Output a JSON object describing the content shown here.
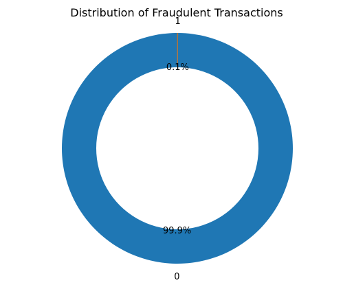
{
  "chart_data": {
    "type": "pie",
    "donut": true,
    "title": "Distribution of Fraudulent Transactions",
    "categories": [
      "0",
      "1"
    ],
    "values": [
      99.9,
      0.1
    ],
    "percent_labels": [
      "99.9%",
      "0.1%"
    ],
    "colors": [
      "#1f77b4",
      "#ff7f0e"
    ],
    "edge_color": "#8c6d4f",
    "start_angle_deg": 90,
    "direction": "counterclockwise",
    "legend": "none"
  }
}
